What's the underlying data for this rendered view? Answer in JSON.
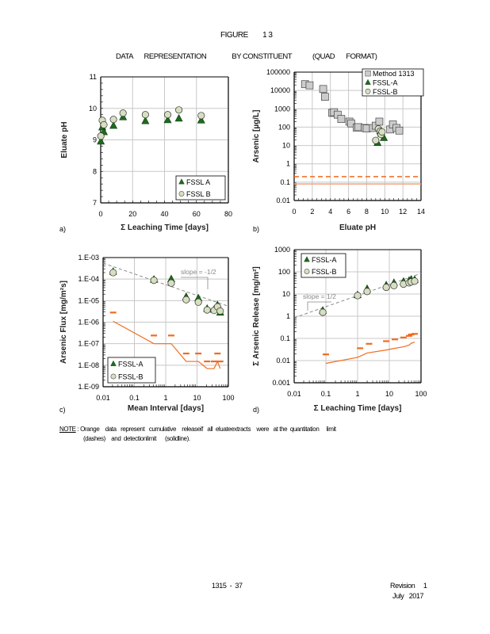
{
  "page": {
    "figure_label": "FIGURE",
    "figure_number": "1 3",
    "subtitle_parts": [
      "DATA",
      "REPRESENTATION",
      "BY CONSTITUENT",
      "(QUAD",
      "FORMAT)"
    ],
    "note": {
      "label": "NOTE",
      "line1": ": Orange    data   represent   cumulative    releaseif   all  eluateextracts    were   at the  quantitation     limit",
      "line2": "(dashes)    and  detectionlimit      (solidline)."
    },
    "footer": {
      "page_number": "1315  -  37",
      "revision": "Revision     1",
      "date": "July   2017"
    }
  },
  "colors": {
    "fssl_a": "#1e6b1e",
    "fssl_b": "#d6dfc0",
    "method_1313": "#cccccc",
    "orange": "#f26b1d",
    "orange_light": "#f5a27a",
    "grid": "#c8c8c8",
    "trend": "#8c8c8c"
  },
  "chart_data": [
    {
      "id": "a",
      "panel_label": "a)",
      "type": "scatter",
      "xlabel": "Σ Leaching Time [days]",
      "ylabel": "Eluate pH",
      "xlim": [
        0,
        80
      ],
      "ylim": [
        7,
        11
      ],
      "xscale": "linear",
      "yscale": "linear",
      "xticks": [
        "0",
        "20",
        "40",
        "60",
        "80"
      ],
      "yticks": [
        "7",
        "8",
        "9",
        "10",
        "11"
      ],
      "grid": true,
      "legend": {
        "position": "bottom-right",
        "entries": [
          "FSSL A",
          "FSSL B"
        ]
      },
      "series": [
        {
          "name": "FSSL A",
          "marker": "triangle",
          "x": [
            0.08,
            1,
            2,
            8,
            14,
            28,
            42,
            49,
            63
          ],
          "y": [
            8.95,
            9.4,
            9.25,
            9.45,
            9.72,
            9.6,
            9.63,
            9.68,
            9.62
          ]
        },
        {
          "name": "FSSL B",
          "marker": "circle",
          "x": [
            0.08,
            1,
            2,
            8,
            14,
            28,
            42,
            49,
            63
          ],
          "y": [
            9.12,
            9.62,
            9.48,
            9.65,
            9.85,
            9.8,
            9.8,
            9.95,
            9.77
          ]
        }
      ]
    },
    {
      "id": "b",
      "panel_label": "b)",
      "type": "scatter",
      "xlabel": "Eluate pH",
      "ylabel": "Arsenic [µg/L]",
      "xlim": [
        0,
        14
      ],
      "ylim": [
        0.01,
        100000
      ],
      "xscale": "linear",
      "yscale": "log",
      "xticks": [
        "0",
        "2",
        "4",
        "6",
        "8",
        "10",
        "12",
        "14"
      ],
      "yticks": [
        "0.01",
        "0.1",
        "1",
        "10",
        "100",
        "1000",
        "10000",
        "100000"
      ],
      "grid": true,
      "legend": {
        "position": "top-right",
        "entries": [
          "Method 1313",
          "FSSL-A",
          "FSSL-B"
        ]
      },
      "series": [
        {
          "name": "Method 1313",
          "marker": "square",
          "x": [
            1.2,
            1.7,
            3.2,
            3.4,
            4.2,
            4.4,
            4.8,
            5.2,
            6.1,
            6.3,
            6.9,
            7.1,
            7.8,
            8.0,
            8.7,
            9.0,
            9.4,
            10.6,
            10.9,
            11.3,
            11.6
          ],
          "y": [
            22000,
            19000,
            12000,
            4500,
            600,
            650,
            480,
            280,
            200,
            160,
            95,
            100,
            90,
            85,
            90,
            120,
            200,
            75,
            140,
            90,
            65
          ]
        },
        {
          "name": "FSSL-A",
          "marker": "triangle",
          "x": [
            9.2,
            9.5,
            9.6,
            9.9
          ],
          "y": [
            14,
            60,
            45,
            26
          ]
        },
        {
          "name": "FSSL-B",
          "marker": "circle",
          "x": [
            9.0,
            9.3,
            9.5,
            9.6,
            9.7
          ],
          "y": [
            19,
            80,
            60,
            40,
            55
          ]
        }
      ],
      "reference_lines": [
        {
          "name": "quantitation limit",
          "style": "dashed",
          "color": "orange",
          "y": 0.2
        },
        {
          "name": "detection limit",
          "style": "solid",
          "color": "orange_light",
          "y": 0.08
        }
      ]
    },
    {
      "id": "c",
      "panel_label": "c)",
      "type": "scatter",
      "xlabel": "Mean Interval  [days]",
      "ylabel": "Arsenic Flux [mg/m²s]",
      "xlim": [
        0.01,
        100
      ],
      "ylim": [
        1e-09,
        0.001
      ],
      "xscale": "log",
      "yscale": "log",
      "xticks": [
        "0.01",
        "0.1",
        "1",
        "10",
        "100"
      ],
      "yticks": [
        "1.E-09",
        "1.E-08",
        "1.E-07",
        "1.E-06",
        "1.E-05",
        "1.E-04",
        "1.E-03"
      ],
      "grid": true,
      "legend": {
        "position": "bottom-left",
        "entries": [
          "FSSL-A",
          "FSSL-B"
        ]
      },
      "annotation": "slope = -1/2",
      "series": [
        {
          "name": "FSSL-A",
          "marker": "triangle",
          "x": [
            0.021,
            0.42,
            1.5,
            4.5,
            11,
            21,
            35,
            45,
            55
          ],
          "y": [
            0.00022,
            9.5e-05,
            0.0001,
            1.5e-05,
            1.3e-05,
            4.2e-06,
            3.8e-06,
            6.2e-06,
            2.8e-06
          ]
        },
        {
          "name": "FSSL-B",
          "marker": "circle",
          "x": [
            0.021,
            0.42,
            1.5,
            4.5,
            11,
            21,
            35,
            45,
            55
          ],
          "y": [
            0.0002,
            8.8e-05,
            6.5e-05,
            1.1e-05,
            8.5e-06,
            3.7e-06,
            3.5e-06,
            5.2e-06,
            3.3e-06
          ]
        }
      ],
      "trend_line": {
        "x": [
          0.01,
          100
        ],
        "y": [
          0.00055,
          5.5e-06
        ],
        "style": "dashed"
      },
      "quantitation_dashes": {
        "x": [
          0.021,
          0.42,
          1.5,
          4.5,
          11,
          21,
          35,
          45,
          55
        ],
        "y": [
          2.8e-06,
          2.4e-07,
          2.4e-07,
          3.5e-08,
          3.5e-08,
          1.5e-08,
          1.5e-08,
          3.5e-08,
          1.5e-08
        ]
      },
      "detection_line": {
        "x": [
          0.021,
          0.42,
          1.5,
          4.5,
          11,
          21,
          35,
          45,
          55
        ],
        "y": [
          1.1e-06,
          1e-07,
          1e-07,
          1.5e-08,
          1.5e-08,
          7e-09,
          7e-09,
          1.5e-08,
          7e-09
        ]
      }
    },
    {
      "id": "d",
      "panel_label": "d)",
      "type": "scatter",
      "xlabel": "Σ Leaching Time [days]",
      "ylabel": "Σ Arsenic Release [mg/m²]",
      "xlim": [
        0.01,
        100
      ],
      "ylim": [
        0.001,
        1000
      ],
      "xscale": "log",
      "yscale": "log",
      "xticks": [
        "0.01",
        "0.1",
        "1",
        "10",
        "100"
      ],
      "yticks": [
        "0.001",
        "0.01",
        "0.1",
        "1",
        "10",
        "100",
        "1000"
      ],
      "grid": true,
      "legend": {
        "position": "top-left",
        "entries": [
          "FSSL-A",
          "FSSL-B"
        ]
      },
      "annotation": "slope = 1/2",
      "series": [
        {
          "name": "FSSL-A",
          "marker": "triangle",
          "x": [
            0.08,
            1,
            2,
            8,
            14,
            28,
            42,
            49,
            63
          ],
          "y": [
            1.8,
            9,
            17,
            25,
            32,
            36,
            40,
            45,
            44
          ]
        },
        {
          "name": "FSSL-B",
          "marker": "circle",
          "x": [
            0.08,
            1,
            2,
            8,
            14,
            28,
            42,
            49,
            63
          ],
          "y": [
            1.5,
            8.5,
            13,
            20,
            24,
            28,
            32,
            35,
            38
          ]
        }
      ],
      "trend_line": {
        "x": [
          0.01,
          100
        ],
        "y": [
          0.85,
          85
        ],
        "style": "dashed"
      },
      "quantitation_dashes": {
        "x": [
          0.1,
          1.2,
          2.3,
          8,
          15,
          28,
          42,
          49,
          63
        ],
        "y": [
          0.019,
          0.036,
          0.057,
          0.075,
          0.09,
          0.11,
          0.13,
          0.15,
          0.16
        ]
      },
      "detection_line": {
        "x": [
          0.1,
          1,
          2,
          8,
          14,
          28,
          42,
          49,
          63
        ],
        "y": [
          0.0075,
          0.014,
          0.022,
          0.03,
          0.035,
          0.042,
          0.05,
          0.06,
          0.068
        ]
      }
    }
  ]
}
